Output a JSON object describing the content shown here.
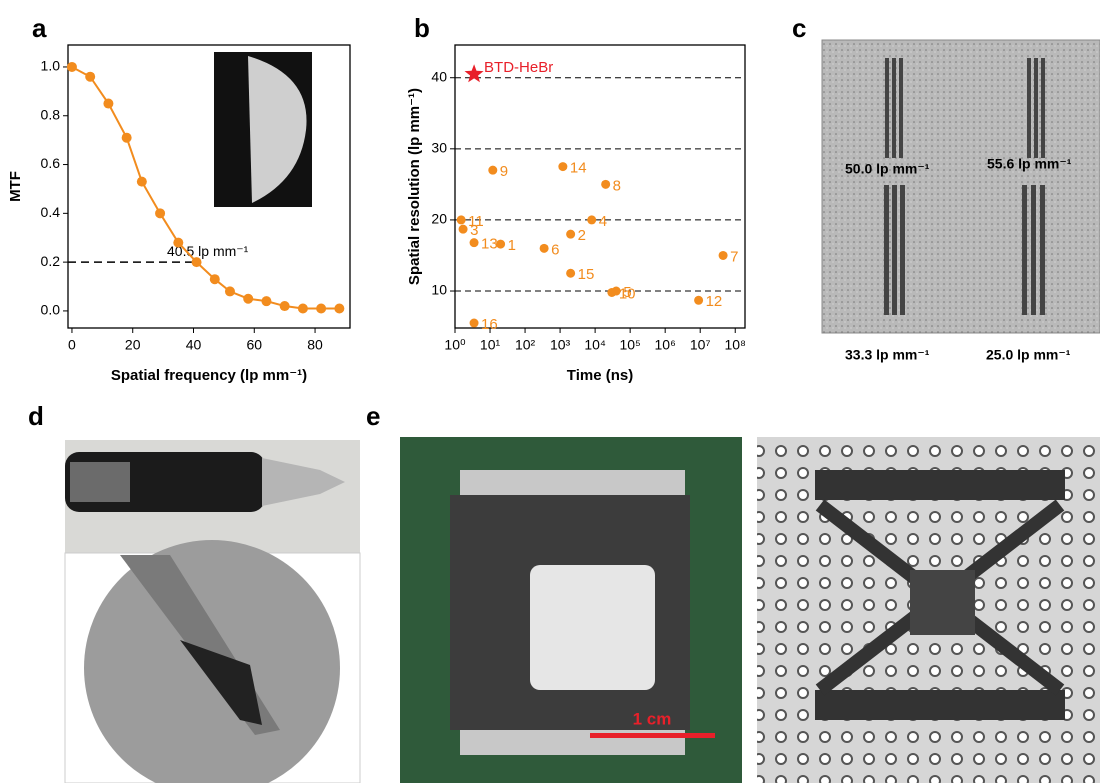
{
  "panel_labels": [
    "a",
    "b",
    "c",
    "d",
    "e"
  ],
  "chart_data": [
    {
      "type": "line",
      "xlabel": "Spatial frequency (lp mm⁻¹)",
      "ylabel": "MTF",
      "x": [
        0,
        6,
        12,
        18,
        23,
        29,
        35,
        41,
        47,
        52,
        58,
        64,
        70,
        76,
        82,
        88
      ],
      "series": [
        {
          "color": "#f28c1e",
          "values": [
            1.0,
            0.96,
            0.85,
            0.71,
            0.53,
            0.4,
            0.28,
            0.2,
            0.13,
            0.08,
            0.05,
            0.04,
            0.02,
            0.01,
            0.01,
            0.01
          ]
        }
      ],
      "xlim": [
        -1.3,
        91.5
      ],
      "ylim": [
        -0.07,
        1.09
      ],
      "xticks": [
        0,
        20,
        40,
        60,
        80
      ],
      "yticks": [
        {
          "value": 0,
          "label": "0.0"
        },
        0.2,
        0.4,
        0.6,
        0.8,
        {
          "value": 1,
          "label": "1.0"
        }
      ],
      "reference_line": {
        "x": 40.5,
        "y": 0.2,
        "label": "40.5 lp mm⁻¹"
      }
    },
    {
      "type": "scatter",
      "xlabel": "Time (ns)",
      "ylabel": "Spatial resolution (lp mm⁻¹)",
      "log_x": true,
      "grid_y": true,
      "series": [
        {
          "name": "BTD-HeBr",
          "color": "#e8202a",
          "marker": "star",
          "x": [
            3.5
          ],
          "values": [
            40.5
          ]
        },
        {
          "color": "#f28c1e",
          "marker": "circle",
          "x": [
            1.5,
            1.7,
            3.5,
            20,
            12,
            1200,
            20000,
            8000,
            2000,
            350,
            2000,
            30000,
            40000,
            9000000,
            45000000,
            3.5
          ],
          "values": [
            20,
            18.7,
            16.8,
            16.6,
            27,
            27.5,
            25,
            20,
            18,
            16,
            12.5,
            9.8,
            10,
            8.7,
            15,
            5.5
          ],
          "point_labels": [
            "11",
            "3",
            "13",
            "1",
            "9",
            "14",
            "8",
            "4",
            "2",
            "6",
            "15",
            "10",
            "5",
            "12",
            "7",
            "16"
          ]
        }
      ],
      "xlim": [
        1,
        190000000
      ],
      "ylim": [
        4.8,
        44.6
      ],
      "xticks": [
        {
          "value": 1,
          "label": "10⁰"
        },
        {
          "value": 10,
          "label": "10¹"
        },
        {
          "value": 100,
          "label": "10²"
        },
        {
          "value": 1000,
          "label": "10³"
        },
        {
          "value": 10000,
          "label": "10⁴"
        },
        {
          "value": 100000,
          "label": "10⁵"
        },
        {
          "value": 1000000,
          "label": "10⁶"
        },
        {
          "value": 10000000,
          "label": "10⁷"
        },
        {
          "value": 100000000,
          "label": "10⁸"
        }
      ],
      "yticks": [
        10,
        20,
        30,
        40
      ]
    }
  ],
  "panel_c": {
    "labels": [
      "50.0 lp mm⁻¹",
      "55.6 lp mm⁻¹",
      "33.3 lp mm⁻¹",
      "25.0 lp mm⁻¹"
    ]
  },
  "panel_e": {
    "scale_bar": "1 cm"
  }
}
